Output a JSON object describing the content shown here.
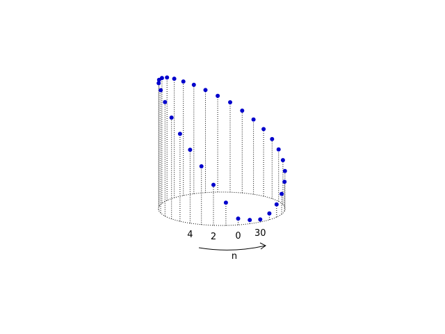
{
  "chart_data": {
    "type": "scatter",
    "projection": "3d-cylinder",
    "title": "",
    "xlabel": "n",
    "ylabel": "",
    "n_points": 32,
    "n_range": [
      0,
      31
    ],
    "points": [
      {
        "n": 0,
        "value": 0.05
      },
      {
        "n": 1,
        "value": 0.18
      },
      {
        "n": 2,
        "value": 0.32
      },
      {
        "n": 3,
        "value": 0.46
      },
      {
        "n": 4,
        "value": 0.58
      },
      {
        "n": 5,
        "value": 0.69
      },
      {
        "n": 6,
        "value": 0.8
      },
      {
        "n": 7,
        "value": 0.9
      },
      {
        "n": 8,
        "value": 0.97
      },
      {
        "n": 9,
        "value": 1.0
      },
      {
        "n": 10,
        "value": 1.0
      },
      {
        "n": 11,
        "value": 0.99
      },
      {
        "n": 12,
        "value": 0.97
      },
      {
        "n": 13,
        "value": 0.94
      },
      {
        "n": 14,
        "value": 0.9
      },
      {
        "n": 15,
        "value": 0.86
      },
      {
        "n": 16,
        "value": 0.81
      },
      {
        "n": 17,
        "value": 0.76
      },
      {
        "n": 18,
        "value": 0.71
      },
      {
        "n": 19,
        "value": 0.65
      },
      {
        "n": 20,
        "value": 0.59
      },
      {
        "n": 21,
        "value": 0.53
      },
      {
        "n": 22,
        "value": 0.47
      },
      {
        "n": 23,
        "value": 0.41
      },
      {
        "n": 24,
        "value": 0.35
      },
      {
        "n": 25,
        "value": 0.29
      },
      {
        "n": 26,
        "value": 0.23
      },
      {
        "n": 27,
        "value": 0.16
      },
      {
        "n": 28,
        "value": 0.1
      },
      {
        "n": 29,
        "value": 0.05
      },
      {
        "n": 30,
        "value": 0.02
      },
      {
        "n": 31,
        "value": 0.03
      }
    ],
    "tick_labels": [
      {
        "n": 30,
        "text": "30"
      },
      {
        "n": 0,
        "text": "0"
      },
      {
        "n": 2,
        "text": "2"
      },
      {
        "n": 4,
        "text": "4"
      }
    ],
    "grid": false,
    "legend": "none",
    "colors": {
      "marker": "#0000cc",
      "stems": "#000000",
      "base": "#000000"
    }
  }
}
